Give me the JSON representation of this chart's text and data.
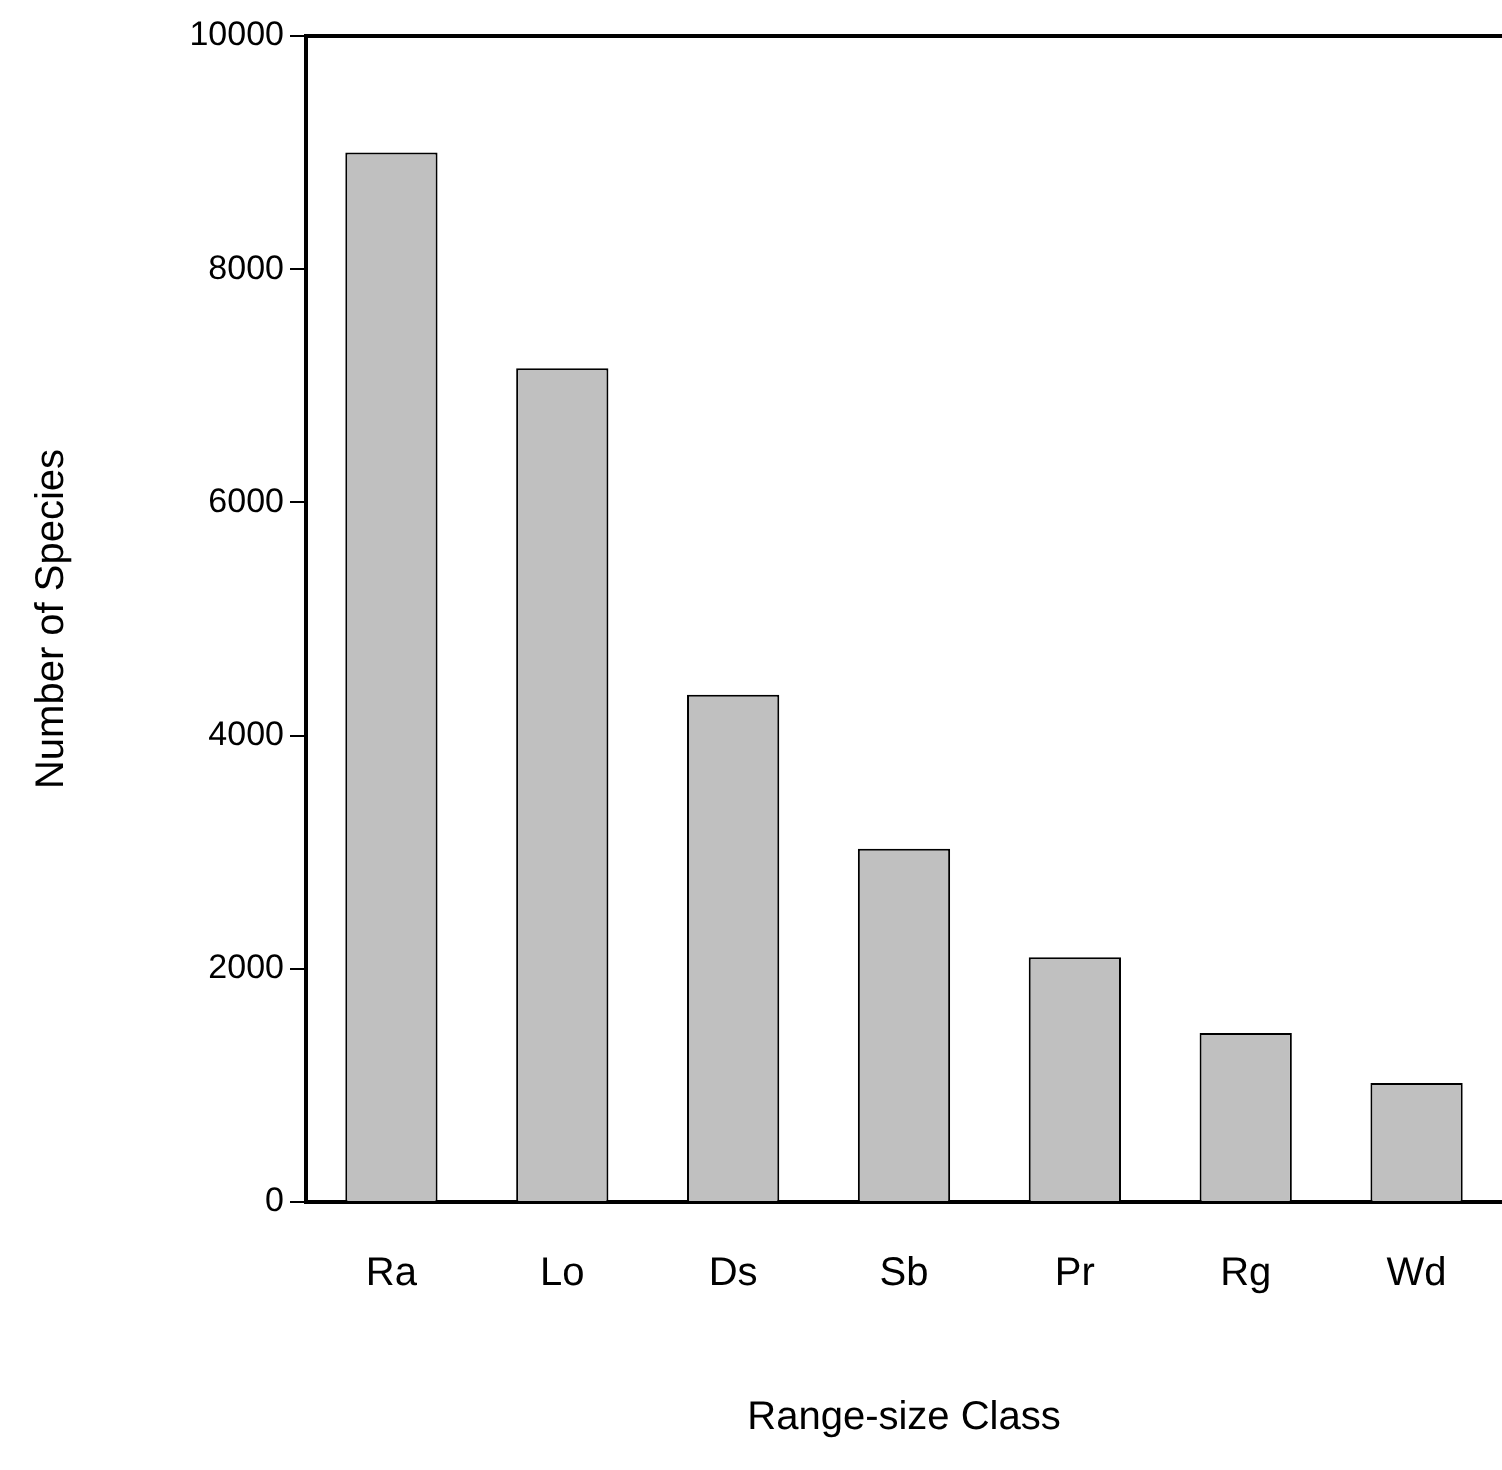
{
  "chart_data": {
    "type": "bar",
    "xlabel": "Range-size Class",
    "ylabel": "Number of Species",
    "categories": [
      "Ra",
      "Lo",
      "Ds",
      "Sb",
      "Pr",
      "Rg",
      "Wd"
    ],
    "values": [
      9000,
      7150,
      4350,
      3030,
      2100,
      1450,
      1020
    ],
    "color": "#c0c0c0",
    "ylim": [
      0,
      10000
    ],
    "yticks": [
      0,
      2000,
      4000,
      6000,
      8000,
      10000
    ],
    "grid": false,
    "legend": false
  }
}
